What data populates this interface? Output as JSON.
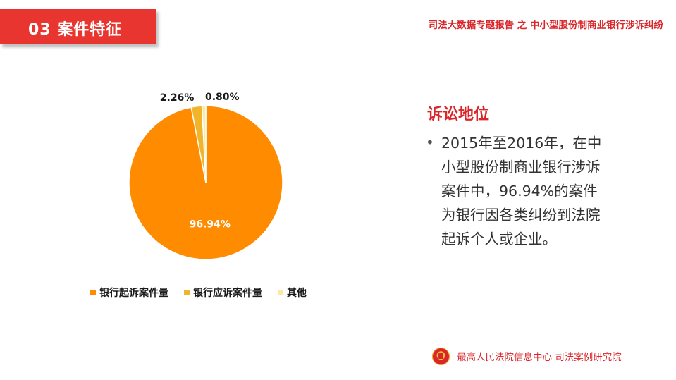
{
  "header": {
    "section_label": "03  案件特征",
    "report_title": "司法大数据专题报告 之 中小型股份制商业银行涉诉纠纷"
  },
  "chart_data": {
    "type": "pie",
    "categories": [
      "银行起诉案件量",
      "银行应诉案件量",
      "其他"
    ],
    "values": [
      96.94,
      2.26,
      0.8
    ],
    "data_labels": [
      "96.94%",
      "2.26%",
      "0.80%"
    ],
    "colors": [
      "#ff8c00",
      "#f0b52a",
      "#fbe9a6"
    ],
    "legend_position": "bottom"
  },
  "side": {
    "heading": "诉讼地位",
    "bullet_lines": [
      "2015年至2016年，在中",
      "小型股份制商业银行涉诉",
      "案件中，96.94%的案件",
      "为银行因各类纠纷到法院",
      "起诉个人或企业。"
    ]
  },
  "footer": {
    "text": "最高人民法院信息中心  司法案例研究院",
    "emblem_icon": "court-emblem-icon"
  },
  "colors": {
    "accent_red": "#e8352f",
    "title_red": "#d9262b"
  }
}
